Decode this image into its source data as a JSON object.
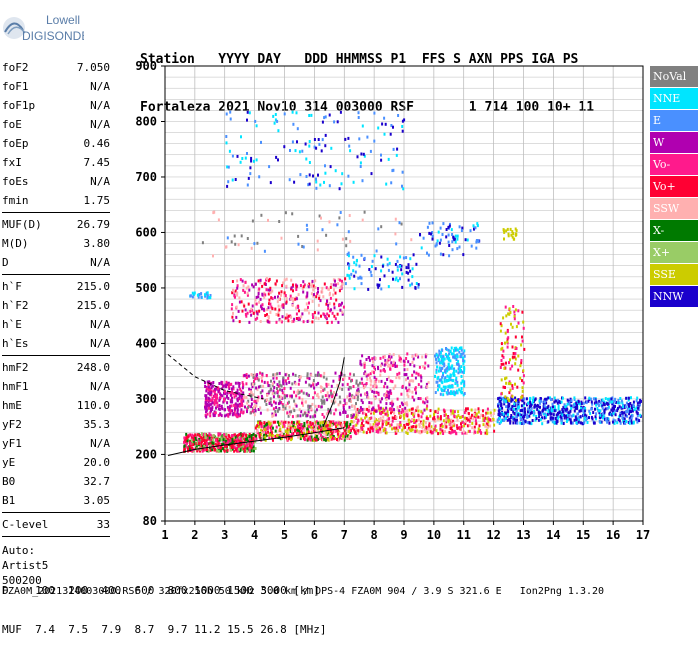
{
  "logo": {
    "line1": "Lowell",
    "line2": "DIGISONDE"
  },
  "header": {
    "labels": [
      "Station",
      "YYYY DAY",
      "DDD HHMMSS",
      "P1",
      "FFS",
      "S",
      "AXN",
      "PPS",
      "IGA",
      "PS"
    ],
    "values": [
      "Fortaleza",
      "2021 Nov10",
      "314 003000",
      "RSF",
      "",
      "1",
      "714",
      "100",
      "10+",
      "11"
    ]
  },
  "params_group1": [
    {
      "label": "foF2",
      "value": "7.050"
    },
    {
      "label": "foF1",
      "value": "N/A"
    },
    {
      "label": "foF1p",
      "value": "N/A"
    },
    {
      "label": "foE",
      "value": "N/A"
    },
    {
      "label": "foEp",
      "value": "0.46"
    },
    {
      "label": "fxI",
      "value": "7.45"
    },
    {
      "label": "foEs",
      "value": "N/A"
    },
    {
      "label": "fmin",
      "value": "1.75"
    }
  ],
  "params_group2": [
    {
      "label": "MUF(D)",
      "value": "26.79"
    },
    {
      "label": "M(D)",
      "value": "3.80"
    },
    {
      "label": "D",
      "value": "N/A"
    }
  ],
  "params_group3": [
    {
      "label": "h`F",
      "value": "215.0"
    },
    {
      "label": "h`F2",
      "value": "215.0"
    },
    {
      "label": "h`E",
      "value": "N/A"
    },
    {
      "label": "h`Es",
      "value": "N/A"
    }
  ],
  "params_group4": [
    {
      "label": "hmF2",
      "value": "248.0"
    },
    {
      "label": "hmF1",
      "value": "N/A"
    },
    {
      "label": "hmE",
      "value": "110.0"
    },
    {
      "label": "yF2",
      "value": "35.3"
    },
    {
      "label": "yF1",
      "value": "N/A"
    },
    {
      "label": "yE",
      "value": "20.0"
    },
    {
      "label": "B0",
      "value": "32.7"
    },
    {
      "label": "B1",
      "value": "3.05"
    }
  ],
  "clevel": {
    "label": "C-level",
    "value": "33"
  },
  "auto": {
    "line1": "Auto:",
    "line2": "Artist5",
    "line3": "500200"
  },
  "legend": [
    {
      "label": "NoVal",
      "color": "#808080"
    },
    {
      "label": "NNE",
      "color": "#00e5ff"
    },
    {
      "label": "E",
      "color": "#4a90ff"
    },
    {
      "label": "W",
      "color": "#b000b0"
    },
    {
      "label": "Vo-",
      "color": "#ff1a8c"
    },
    {
      "label": "Vo+",
      "color": "#ff0033"
    },
    {
      "label": "SSW",
      "color": "#ffb0b0"
    },
    {
      "label": "X-",
      "color": "#007a00"
    },
    {
      "label": "X+",
      "color": "#99cc66"
    },
    {
      "label": "SSE",
      "color": "#cccc00"
    },
    {
      "label": "NNW",
      "color": "#1a00cc"
    }
  ],
  "footer": {
    "d_label": "D",
    "d_values": "100  200  400  600  800 1000 1500 3000 [km]",
    "muf_label": "MUF",
    "muf_values": "7.4  7.5  7.9  8.7  9.7 11.2 15.5 26.8 [MHz]",
    "bottom": "FZA0M_2021314003000.RSF / 320fx256h 50 kHz 5.0 km / DPS-4 FZA0M 904 / 3.9 S 321.6 E   Ion2Png 1.3.20"
  },
  "chart_data": {
    "type": "scatter",
    "xlim": [
      1,
      17
    ],
    "ylim": [
      80,
      900
    ],
    "xticks": [
      "1",
      "2",
      "3",
      "4",
      "5",
      "6",
      "7",
      "8",
      "9",
      "10",
      "11",
      "12",
      "13",
      "14",
      "15",
      "16",
      "17"
    ],
    "yticks": [
      {
        "value": 80,
        "label": "80"
      },
      {
        "value": 200,
        "label": "200"
      },
      {
        "value": 300,
        "label": "300"
      },
      {
        "value": 400,
        "label": "400"
      },
      {
        "value": 500,
        "label": "500"
      },
      {
        "value": 600,
        "label": "600"
      },
      {
        "value": 700,
        "label": "700"
      },
      {
        "value": 800,
        "label": "800"
      },
      {
        "value": 900,
        "label": "900"
      }
    ],
    "grid": true,
    "profile_curve": {
      "x": [
        1.1,
        2,
        3,
        4,
        5,
        6,
        7
      ],
      "y": [
        198,
        209,
        217,
        224,
        231,
        239,
        248
      ]
    },
    "upper_curve": {
      "x": [
        1.1,
        2,
        3,
        4.3
      ],
      "y": [
        380,
        340,
        315,
        300
      ]
    },
    "vertical_line": {
      "x": [
        6.3,
        6.6,
        6.85,
        7.0
      ],
      "y": [
        250,
        290,
        330,
        375
      ]
    },
    "clusters": [
      {
        "x": [
          1.6,
          4.0
        ],
        "y": [
          208,
          240
        ],
        "colors": [
          "#ff0033",
          "#ff1a8c",
          "#007a00",
          "#99cc66",
          "#ff0033"
        ],
        "n": 520
      },
      {
        "x": [
          4.0,
          7.2
        ],
        "y": [
          228,
          262
        ],
        "colors": [
          "#ff0033",
          "#ff1a8c",
          "#ffb0b0",
          "#007a00",
          "#cccc00"
        ],
        "n": 520
      },
      {
        "x": [
          7.2,
          12.0
        ],
        "y": [
          240,
          285
        ],
        "colors": [
          "#ff0033",
          "#ff1a8c",
          "#ffb0b0",
          "#cccc00"
        ],
        "n": 480
      },
      {
        "x": [
          2.3,
          3.6
        ],
        "y": [
          270,
          335
        ],
        "colors": [
          "#b000b0",
          "#b000b0",
          "#ff1a8c"
        ],
        "n": 260
      },
      {
        "x": [
          3.6,
          7.5
        ],
        "y": [
          270,
          350
        ],
        "colors": [
          "#b000b0",
          "#ffb0b0",
          "#ff1a8c",
          "#808080"
        ],
        "n": 420
      },
      {
        "x": [
          7.5,
          9.8
        ],
        "y": [
          280,
          385
        ],
        "colors": [
          "#ffb0b0",
          "#b000b0",
          "#ff1a8c"
        ],
        "n": 260
      },
      {
        "x": [
          10.0,
          11.0
        ],
        "y": [
          310,
          395
        ],
        "colors": [
          "#00e5ff",
          "#00e5ff",
          "#4a90ff"
        ],
        "n": 220
      },
      {
        "x": [
          12.1,
          16.9
        ],
        "y": [
          258,
          305
        ],
        "colors": [
          "#1a00cc",
          "#4a90ff",
          "#00e5ff",
          "#1a00cc"
        ],
        "n": 700
      },
      {
        "x": [
          12.2,
          13.0
        ],
        "y": [
          300,
          470
        ],
        "colors": [
          "#ff0033",
          "#ff1a8c",
          "#cccc00"
        ],
        "n": 110
      },
      {
        "x": [
          3.2,
          7.0
        ],
        "y": [
          440,
          520
        ],
        "colors": [
          "#ffb0b0",
          "#ff1a8c",
          "#b000b0",
          "#ff0033"
        ],
        "n": 320
      },
      {
        "x": [
          7.0,
          9.5
        ],
        "y": [
          500,
          565
        ],
        "colors": [
          "#1a00cc",
          "#4a90ff",
          "#00e5ff"
        ],
        "n": 90
      },
      {
        "x": [
          9.5,
          11.5
        ],
        "y": [
          560,
          620
        ],
        "colors": [
          "#4a90ff",
          "#00e5ff",
          "#1a00cc"
        ],
        "n": 70
      },
      {
        "x": [
          3.0,
          9.0
        ],
        "y": [
          680,
          820
        ],
        "colors": [
          "#4a90ff",
          "#00e5ff",
          "#1a00cc"
        ],
        "n": 150
      },
      {
        "x": [
          2.0,
          9.5
        ],
        "y": [
          560,
          640
        ],
        "colors": [
          "#808080",
          "#4a90ff",
          "#ffb0b0"
        ],
        "n": 60
      },
      {
        "x": [
          1.8,
          2.5
        ],
        "y": [
          484,
          494
        ],
        "colors": [
          "#4a90ff",
          "#00e5ff"
        ],
        "n": 25
      },
      {
        "x": [
          12.3,
          12.8
        ],
        "y": [
          590,
          610
        ],
        "colors": [
          "#cccc00"
        ],
        "n": 20
      }
    ]
  }
}
